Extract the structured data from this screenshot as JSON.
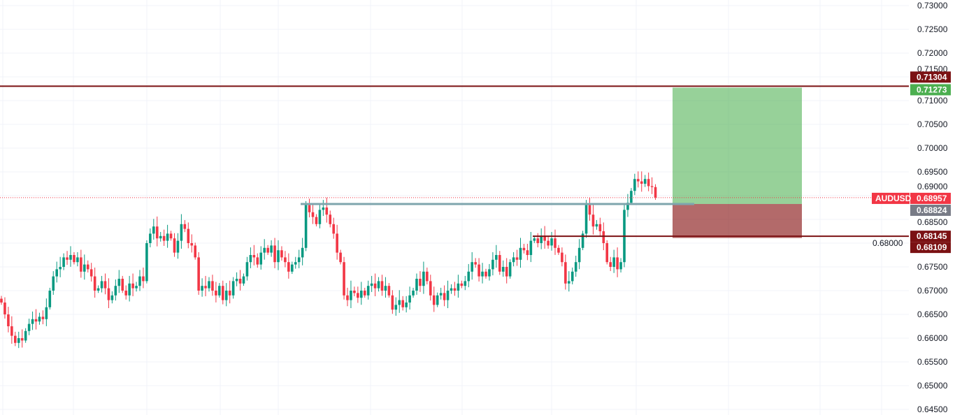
{
  "symbol": "AUDUSD",
  "colors": {
    "up": "#089981",
    "down": "#f23645",
    "grid": "#f0f3fa",
    "tp_zone": "#4caf50",
    "sl_zone": "#8b1a1a",
    "level_line": "#7b1113",
    "support_line": "#7ea5ad",
    "tp_label": "#4caf50",
    "level_label": "#7b1113",
    "entry_label": "#787b86",
    "price_label": "#f23645"
  },
  "chart_data": {
    "type": "candlestick",
    "title": "",
    "xlabel": "",
    "ylabel": "",
    "ylim": [
      0.645,
      0.731
    ],
    "grid": true,
    "y_ticks": [
      "0.73000",
      "0.72500",
      "0.72000",
      "0.71500",
      "0.71000",
      "0.70500",
      "0.70000",
      "0.69500",
      "0.69000",
      "0.68500",
      "0.68000",
      "0.67500",
      "0.67000",
      "0.66500",
      "0.66000",
      "0.65500",
      "0.65000",
      "0.64500"
    ],
    "closes": [
      0.6675,
      0.665,
      0.6625,
      0.6605,
      0.659,
      0.66,
      0.6595,
      0.6615,
      0.663,
      0.664,
      0.6635,
      0.6645,
      0.664,
      0.6665,
      0.67,
      0.673,
      0.6745,
      0.675,
      0.677,
      0.6765,
      0.6775,
      0.676,
      0.677,
      0.674,
      0.6755,
      0.6745,
      0.673,
      0.67,
      0.6705,
      0.672,
      0.6705,
      0.668,
      0.669,
      0.671,
      0.6725,
      0.67,
      0.669,
      0.6715,
      0.6705,
      0.671,
      0.673,
      0.672,
      0.68,
      0.682,
      0.6835,
      0.681,
      0.6815,
      0.6805,
      0.682,
      0.681,
      0.678,
      0.6805,
      0.684,
      0.683,
      0.68,
      0.6795,
      0.677,
      0.67,
      0.671,
      0.6705,
      0.672,
      0.67,
      0.669,
      0.671,
      0.668,
      0.67,
      0.669,
      0.672,
      0.6725,
      0.6715,
      0.673,
      0.676,
      0.6775,
      0.677,
      0.6755,
      0.678,
      0.679,
      0.678,
      0.6795,
      0.676,
      0.6785,
      0.677,
      0.676,
      0.674,
      0.6755,
      0.676,
      0.677,
      0.679,
      0.688,
      0.6865,
      0.6855,
      0.684,
      0.687,
      0.6875,
      0.686,
      0.684,
      0.682,
      0.678,
      0.676,
      0.669,
      0.668,
      0.67,
      0.6695,
      0.6685,
      0.67,
      0.669,
      0.671,
      0.6715,
      0.6705,
      0.672,
      0.67,
      0.671,
      0.669,
      0.666,
      0.667,
      0.668,
      0.6665,
      0.6675,
      0.669,
      0.67,
      0.6725,
      0.671,
      0.674,
      0.672,
      0.669,
      0.667,
      0.669,
      0.6695,
      0.668,
      0.67,
      0.6705,
      0.67,
      0.6715,
      0.671,
      0.672,
      0.674,
      0.676,
      0.6755,
      0.673,
      0.674,
      0.673,
      0.6745,
      0.6765,
      0.6775,
      0.674,
      0.675,
      0.673,
      0.676,
      0.677,
      0.6765,
      0.679,
      0.6785,
      0.6775,
      0.6805,
      0.681,
      0.68,
      0.6815,
      0.6805,
      0.6795,
      0.681,
      0.679,
      0.678,
      0.676,
      0.6715,
      0.672,
      0.674,
      0.676,
      0.679,
      0.682,
      0.688,
      0.686,
      0.6835,
      0.684,
      0.6825,
      0.68,
      0.676,
      0.675,
      0.677,
      0.6745,
      0.676,
      0.687,
      0.6885,
      0.691,
      0.6935,
      0.693,
      0.6925,
      0.6935,
      0.692,
      0.6918,
      0.6896
    ],
    "levels": {
      "resistance": {
        "price": 0.71304,
        "label": "0.71304"
      },
      "take_profit": {
        "price": 0.71273,
        "label": "0.71273"
      },
      "current": {
        "price": 0.68957,
        "label": "0.68957"
      },
      "entry": {
        "price": 0.68824,
        "label": "0.68824"
      },
      "support": {
        "price": 0.68145,
        "label": "0.68145"
      },
      "stop_loss": {
        "price": 0.68109,
        "label": "0.68109"
      }
    }
  }
}
